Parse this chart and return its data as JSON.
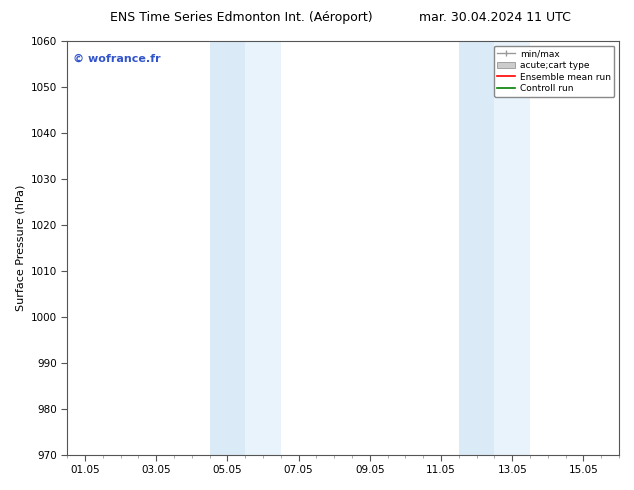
{
  "title": "ENS Time Series Edmonton Int. (Aéroport)     mar. 30.04.2024 11 UTC",
  "title_left": "ENS Time Series Edmonton Int. (Aéroport)",
  "title_right": "mar. 30.04.2024 11 UTC",
  "ylabel": "Surface Pressure (hPa)",
  "ylim": [
    970,
    1060
  ],
  "yticks": [
    970,
    980,
    990,
    1000,
    1010,
    1020,
    1030,
    1040,
    1050,
    1060
  ],
  "xtick_labels": [
    "01.05",
    "03.05",
    "05.05",
    "07.05",
    "09.05",
    "11.05",
    "13.05",
    "15.05"
  ],
  "xtick_positions": [
    0,
    2,
    4,
    6,
    8,
    10,
    12,
    14
  ],
  "xlim": [
    -0.5,
    15
  ],
  "shaded_bands": [
    {
      "x_start": 3.5,
      "x_end": 4.5
    },
    {
      "x_start": 4.5,
      "x_end": 5.5
    },
    {
      "x_start": 10.5,
      "x_end": 11.5
    },
    {
      "x_start": 11.5,
      "x_end": 12.5
    }
  ],
  "shaded_color": "#dbeaf7",
  "shaded_color2": "#e8f3fb",
  "watermark": "© wofrance.fr",
  "watermark_color": "#3355cc",
  "bg_color": "#ffffff",
  "grid_color": "#dddddd",
  "legend_items": [
    {
      "label": "min/max",
      "color": "#999999",
      "lw": 1.0
    },
    {
      "label": "acute;cart type",
      "color": "#cccccc",
      "lw": 6
    },
    {
      "label": "Ensemble mean run",
      "color": "#ff0000",
      "lw": 1.2
    },
    {
      "label": "Controll run",
      "color": "#008000",
      "lw": 1.2
    }
  ],
  "title_fontsize": 9,
  "axis_fontsize": 8,
  "tick_fontsize": 7.5
}
